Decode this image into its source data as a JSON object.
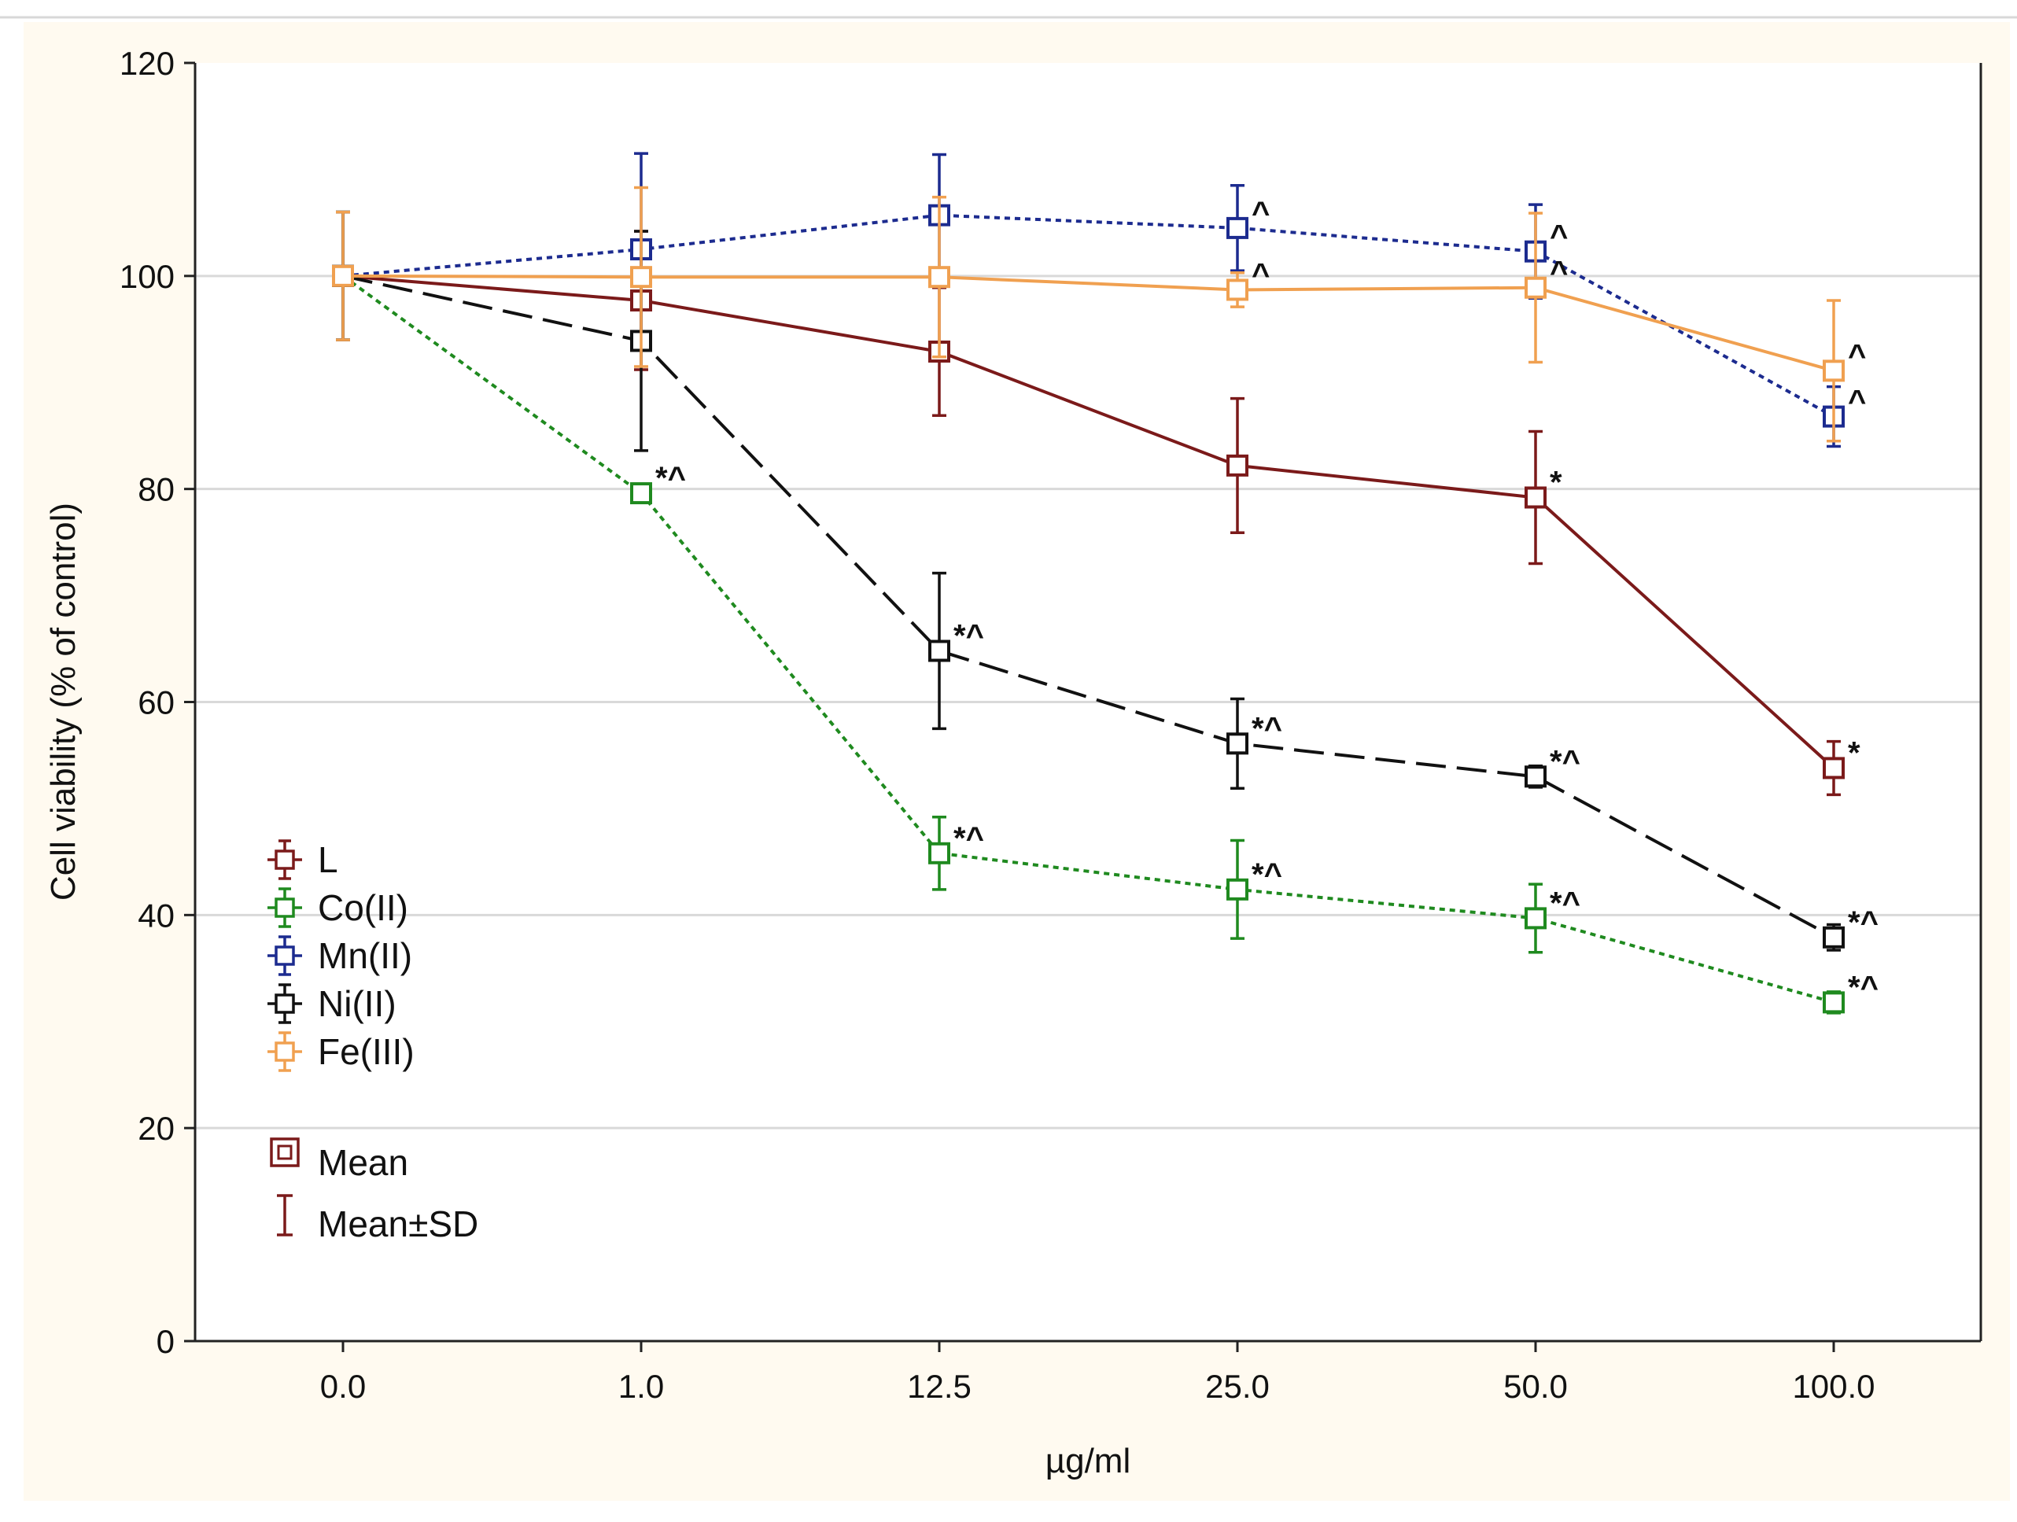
{
  "chart_data": {
    "type": "line",
    "title": "",
    "xlabel": "µg/ml",
    "ylabel": "Cell viability (% of control)",
    "categories": [
      "0.0",
      "1.0",
      "12.5",
      "25.0",
      "50.0",
      "100.0"
    ],
    "ylim": [
      0,
      120
    ],
    "yticks": [
      0,
      20,
      40,
      60,
      80,
      100,
      120
    ],
    "ytick_labels": [
      "0",
      "20",
      "40",
      "60",
      "80",
      "100",
      "120"
    ],
    "grid": "horizontal",
    "series": [
      {
        "name": "L",
        "color": "#7b1a1a",
        "dash": "solid",
        "values": [
          100,
          97.7,
          92.9,
          82.2,
          79.2,
          53.8
        ],
        "sd": [
          6,
          6.5,
          6,
          6.3,
          6.2,
          2.5
        ],
        "annotations": [
          "",
          "",
          "",
          "",
          "*",
          "*"
        ]
      },
      {
        "name": "Co(II)",
        "color": "#1f8a1f",
        "dash": "dotted",
        "values": [
          100,
          79.6,
          45.8,
          42.4,
          39.7,
          31.8
        ],
        "sd": [
          6,
          0.8,
          3.4,
          4.6,
          3.2,
          1
        ],
        "annotations": [
          "",
          "*^",
          "*^",
          "*^",
          "*^",
          "*^"
        ]
      },
      {
        "name": "Mn(II)",
        "color": "#1c2b8f",
        "dash": "dotted",
        "values": [
          100,
          102.5,
          105.7,
          104.5,
          102.3,
          86.8
        ],
        "sd": [
          6,
          9,
          5.7,
          4,
          4.4,
          2.8
        ],
        "annotations": [
          "",
          "",
          "",
          "^",
          "^",
          "^"
        ]
      },
      {
        "name": "Ni(II)",
        "color": "#111111",
        "dash": "longdash",
        "values": [
          100,
          93.9,
          64.8,
          56.1,
          53.0,
          37.9
        ],
        "sd": [
          6,
          10.3,
          7.3,
          4.2,
          1,
          1.2
        ],
        "annotations": [
          "",
          "",
          "*^",
          "*^",
          "*^",
          "*^"
        ]
      },
      {
        "name": "Fe(III)",
        "color": "#f0a050",
        "dash": "solid",
        "values": [
          100,
          99.9,
          99.9,
          98.7,
          98.9,
          91.1
        ],
        "sd": [
          6,
          8.4,
          7.5,
          1.6,
          7,
          6.6
        ],
        "annotations": [
          "",
          "",
          "",
          "^",
          "^",
          "^"
        ]
      }
    ],
    "legend": {
      "position": "left-middle",
      "entries": [
        "L",
        "Co(II)",
        "Mn(II)",
        "Ni(II)",
        "Fe(III)"
      ],
      "mean_label": "Mean",
      "sd_label": "Mean±SD",
      "marker_color": "#7b1a1a"
    }
  }
}
